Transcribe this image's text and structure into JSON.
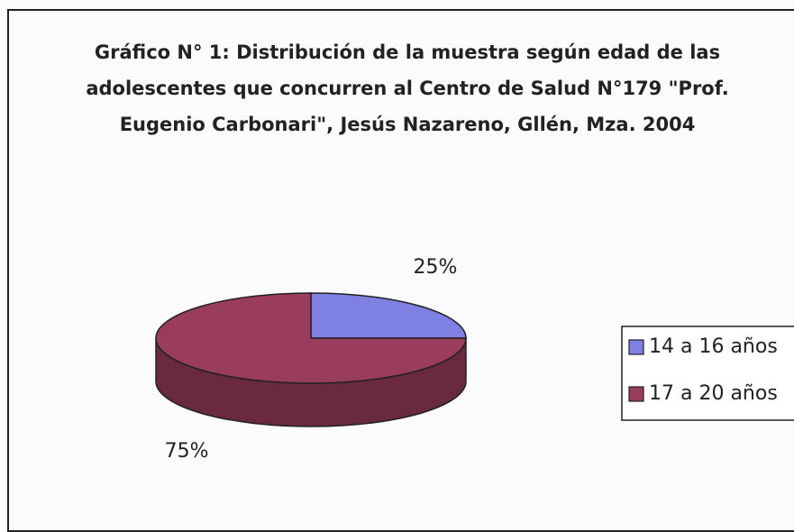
{
  "chart_data": {
    "type": "pie",
    "title": "Gráfico N° 1: Distribución de la muestra según edad de las adolescentes que concurren al Centro de Salud N°179 \"Prof. Eugenio Carbonari\", Jesús Nazareno, Gllén, Mza. 2004",
    "categories": [
      "14 a 16 años",
      "17 a 20 años"
    ],
    "values": [
      25,
      75
    ],
    "value_labels": [
      "25%",
      "75%"
    ],
    "colors": [
      "#7e80e4",
      "#9a3d5c"
    ],
    "legend": "right"
  }
}
